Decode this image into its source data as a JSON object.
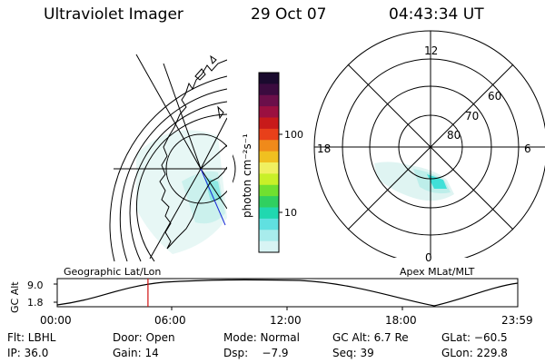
{
  "header": {
    "title": "Ultraviolet Imager",
    "date": "29 Oct 07",
    "time": "04:43:34 UT"
  },
  "colorbar": {
    "unit_label": "photon cm⁻²s⁻¹",
    "ticks": [
      "100",
      "10"
    ],
    "colors": [
      "#1a0a2e",
      "#3b0b3f",
      "#6b0f4a",
      "#9b1040",
      "#c81a1a",
      "#e8401a",
      "#f08a1a",
      "#f0c020",
      "#f0f060",
      "#c8f028",
      "#70e030",
      "#30d060",
      "#20d8b0",
      "#60e0e0",
      "#a8ecec",
      "#d8f4f4"
    ]
  },
  "left_map": {
    "caption": "Geographic Lat/Lon"
  },
  "right_map": {
    "caption": "Apex MLat/MLT",
    "mlt_labels": {
      "top": "12",
      "left": "18",
      "right": "6",
      "bottom": "0"
    },
    "lat_labels": [
      "60",
      "70",
      "80"
    ]
  },
  "timeline": {
    "ylabel": "GC Alt",
    "yticks": [
      "9.0",
      "1.8"
    ],
    "xticks": [
      "00:00",
      "06:00",
      "12:00",
      "18:00",
      "23:59"
    ],
    "marker_time_hours": 4.73
  },
  "status": {
    "row1": [
      {
        "label": "Flt: LBHL"
      },
      {
        "label": "Door: Open"
      },
      {
        "label": "Mode: Normal"
      },
      {
        "label": "GC Alt: 6.7 Re"
      },
      {
        "label": "GLat: −60.5"
      }
    ],
    "row2": [
      {
        "label": "IP: 36.0"
      },
      {
        "label": "Gain: 14"
      },
      {
        "label": "Dsp:    −7.9"
      },
      {
        "label": "Seq: 39"
      },
      {
        "label": "GLon: 229.8"
      }
    ]
  }
}
